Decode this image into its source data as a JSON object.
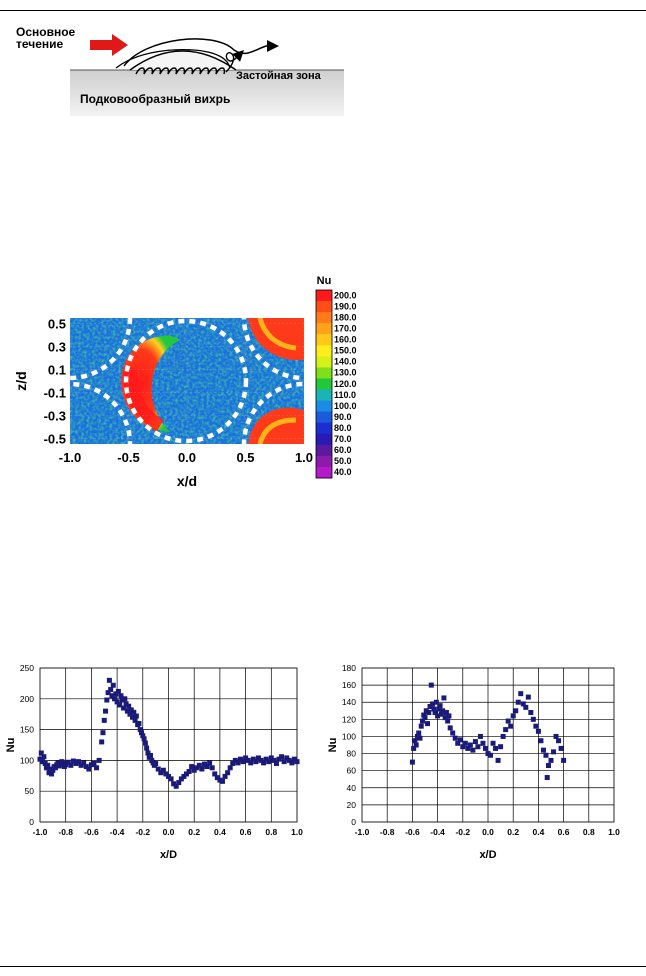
{
  "schematic": {
    "main_flow_label": "Основное\nтечение",
    "stagnation_label": "Застойная зона",
    "horseshoe_label": "Подковообразный вихрь"
  },
  "heatmap": {
    "colorbar_title": "Nu",
    "colorbar_levels": [
      "200.0",
      "190.0",
      "180.0",
      "170.0",
      "160.0",
      "150.0",
      "140.0",
      "130.0",
      "120.0",
      "110.0",
      "100.0",
      "90.0",
      "80.0",
      "70.0",
      "60.0",
      "50.0",
      "40.0"
    ],
    "colorbar_colors": [
      "#ff1a1a",
      "#ff4d1a",
      "#ff7a1a",
      "#ffa31a",
      "#ffc81a",
      "#ffee1a",
      "#d4f21a",
      "#7fe01a",
      "#22c83a",
      "#1ab4b4",
      "#1a8ce6",
      "#1a5adc",
      "#1a2ed2",
      "#2a1ab4",
      "#5a1aa0",
      "#8c1aaa",
      "#b41ac8"
    ],
    "y_ticks": [
      "0.5",
      "0.3",
      "0.1",
      "-0.1",
      "-0.3",
      "-0.5"
    ],
    "x_ticks": [
      "-1.0",
      "-0.5",
      "0.0",
      "0.5",
      "1.0"
    ],
    "xlabel": "x/d",
    "ylabel": "z/d"
  },
  "chart_data": [
    {
      "type": "scatter",
      "xlabel": "x/D",
      "ylabel": "Nu",
      "xlim": [
        -1.0,
        1.0
      ],
      "ylim": [
        0,
        250
      ],
      "x_ticks": [
        "-1.0",
        "-0.8",
        "-0.6",
        "-0.4",
        "-0.2",
        "0.0",
        "0.2",
        "0.4",
        "0.6",
        "0.8",
        "1.0"
      ],
      "y_ticks": [
        "0",
        "50",
        "100",
        "150",
        "200",
        "250"
      ],
      "grid": true,
      "marker_color": "#1a1a7a",
      "points": [
        [
          -1.0,
          102
        ],
        [
          -0.99,
          112
        ],
        [
          -0.98,
          98
        ],
        [
          -0.97,
          106
        ],
        [
          -0.96,
          95
        ],
        [
          -0.95,
          88
        ],
        [
          -0.94,
          92
        ],
        [
          -0.93,
          80
        ],
        [
          -0.92,
          86
        ],
        [
          -0.91,
          78
        ],
        [
          -0.9,
          84
        ],
        [
          -0.89,
          90
        ],
        [
          -0.88,
          88
        ],
        [
          -0.87,
          93
        ],
        [
          -0.86,
          96
        ],
        [
          -0.85,
          91
        ],
        [
          -0.84,
          94
        ],
        [
          -0.83,
          98
        ],
        [
          -0.82,
          95
        ],
        [
          -0.81,
          90
        ],
        [
          -0.8,
          93
        ],
        [
          -0.78,
          97
        ],
        [
          -0.76,
          92
        ],
        [
          -0.74,
          99
        ],
        [
          -0.72,
          95
        ],
        [
          -0.7,
          98
        ],
        [
          -0.68,
          92
        ],
        [
          -0.66,
          96
        ],
        [
          -0.64,
          90
        ],
        [
          -0.62,
          86
        ],
        [
          -0.6,
          93
        ],
        [
          -0.58,
          95
        ],
        [
          -0.56,
          88
        ],
        [
          -0.54,
          100
        ],
        [
          -0.52,
          130
        ],
        [
          -0.51,
          145
        ],
        [
          -0.5,
          165
        ],
        [
          -0.49,
          180
        ],
        [
          -0.48,
          198
        ],
        [
          -0.47,
          210
        ],
        [
          -0.46,
          230
        ],
        [
          -0.45,
          215
        ],
        [
          -0.44,
          205
        ],
        [
          -0.43,
          222
        ],
        [
          -0.42,
          200
        ],
        [
          -0.41,
          208
        ],
        [
          -0.4,
          195
        ],
        [
          -0.39,
          212
        ],
        [
          -0.38,
          190
        ],
        [
          -0.37,
          205
        ],
        [
          -0.36,
          198
        ],
        [
          -0.35,
          185
        ],
        [
          -0.34,
          200
        ],
        [
          -0.33,
          192
        ],
        [
          -0.32,
          180
        ],
        [
          -0.31,
          188
        ],
        [
          -0.3,
          175
        ],
        [
          -0.29,
          182
        ],
        [
          -0.28,
          170
        ],
        [
          -0.27,
          178
        ],
        [
          -0.26,
          165
        ],
        [
          -0.25,
          172
        ],
        [
          -0.24,
          158
        ],
        [
          -0.23,
          160
        ],
        [
          -0.22,
          150
        ],
        [
          -0.21,
          145
        ],
        [
          -0.2,
          140
        ],
        [
          -0.19,
          135
        ],
        [
          -0.18,
          128
        ],
        [
          -0.17,
          120
        ],
        [
          -0.16,
          112
        ],
        [
          -0.15,
          105
        ],
        [
          -0.14,
          108
        ],
        [
          -0.13,
          100
        ],
        [
          -0.12,
          96
        ],
        [
          -0.11,
          92
        ],
        [
          -0.1,
          95
        ],
        [
          -0.08,
          86
        ],
        [
          -0.06,
          80
        ],
        [
          -0.04,
          84
        ],
        [
          -0.02,
          78
        ],
        [
          0.0,
          74
        ],
        [
          0.02,
          70
        ],
        [
          0.04,
          62
        ],
        [
          0.06,
          58
        ],
        [
          0.08,
          64
        ],
        [
          0.1,
          70
        ],
        [
          0.12,
          74
        ],
        [
          0.14,
          78
        ],
        [
          0.16,
          82
        ],
        [
          0.18,
          90
        ],
        [
          0.2,
          84
        ],
        [
          0.22,
          88
        ],
        [
          0.24,
          92
        ],
        [
          0.26,
          86
        ],
        [
          0.28,
          94
        ],
        [
          0.3,
          90
        ],
        [
          0.32,
          96
        ],
        [
          0.34,
          88
        ],
        [
          0.36,
          78
        ],
        [
          0.38,
          72
        ],
        [
          0.4,
          68
        ],
        [
          0.42,
          66
        ],
        [
          0.44,
          74
        ],
        [
          0.46,
          80
        ],
        [
          0.48,
          88
        ],
        [
          0.5,
          95
        ],
        [
          0.52,
          100
        ],
        [
          0.54,
          96
        ],
        [
          0.56,
          102
        ],
        [
          0.58,
          98
        ],
        [
          0.6,
          104
        ],
        [
          0.62,
          100
        ],
        [
          0.64,
          96
        ],
        [
          0.66,
          102
        ],
        [
          0.68,
          98
        ],
        [
          0.7,
          104
        ],
        [
          0.72,
          100
        ],
        [
          0.74,
          96
        ],
        [
          0.76,
          102
        ],
        [
          0.78,
          98
        ],
        [
          0.8,
          104
        ],
        [
          0.82,
          100
        ],
        [
          0.84,
          95
        ],
        [
          0.86,
          102
        ],
        [
          0.88,
          106
        ],
        [
          0.9,
          98
        ],
        [
          0.92,
          104
        ],
        [
          0.94,
          100
        ],
        [
          0.96,
          96
        ],
        [
          0.98,
          102
        ],
        [
          1.0,
          98
        ]
      ]
    },
    {
      "type": "scatter",
      "xlabel": "x/D",
      "ylabel": "Nu",
      "xlim": [
        -1.0,
        1.0
      ],
      "ylim": [
        0,
        180
      ],
      "x_ticks": [
        "-1.0",
        "-0.8",
        "-0.6",
        "-0.4",
        "-0.2",
        "0.0",
        "0.2",
        "0.4",
        "0.6",
        "0.8",
        "1.0"
      ],
      "y_ticks": [
        "0",
        "20",
        "40",
        "60",
        "80",
        "100",
        "120",
        "140",
        "160",
        "180"
      ],
      "grid": true,
      "marker_color": "#1a1a7a",
      "points": [
        [
          -0.6,
          70
        ],
        [
          -0.59,
          86
        ],
        [
          -0.58,
          95
        ],
        [
          -0.57,
          90
        ],
        [
          -0.56,
          100
        ],
        [
          -0.55,
          104
        ],
        [
          -0.54,
          98
        ],
        [
          -0.53,
          112
        ],
        [
          -0.52,
          118
        ],
        [
          -0.51,
          125
        ],
        [
          -0.5,
          122
        ],
        [
          -0.49,
          130
        ],
        [
          -0.48,
          115
        ],
        [
          -0.47,
          128
        ],
        [
          -0.46,
          135
        ],
        [
          -0.45,
          160
        ],
        [
          -0.44,
          138
        ],
        [
          -0.43,
          132
        ],
        [
          -0.42,
          128
        ],
        [
          -0.41,
          140
        ],
        [
          -0.4,
          124
        ],
        [
          -0.39,
          132
        ],
        [
          -0.38,
          136
        ],
        [
          -0.37,
          126
        ],
        [
          -0.36,
          130
        ],
        [
          -0.35,
          145
        ],
        [
          -0.34,
          122
        ],
        [
          -0.33,
          128
        ],
        [
          -0.32,
          118
        ],
        [
          -0.31,
          124
        ],
        [
          -0.3,
          110
        ],
        [
          -0.28,
          104
        ],
        [
          -0.26,
          98
        ],
        [
          -0.24,
          92
        ],
        [
          -0.22,
          96
        ],
        [
          -0.2,
          88
        ],
        [
          -0.18,
          92
        ],
        [
          -0.16,
          86
        ],
        [
          -0.14,
          90
        ],
        [
          -0.12,
          84
        ],
        [
          -0.1,
          94
        ],
        [
          -0.08,
          88
        ],
        [
          -0.06,
          100
        ],
        [
          -0.04,
          92
        ],
        [
          -0.02,
          86
        ],
        [
          0.0,
          80
        ],
        [
          0.02,
          78
        ],
        [
          0.04,
          92
        ],
        [
          0.06,
          86
        ],
        [
          0.08,
          72
        ],
        [
          0.1,
          88
        ],
        [
          0.12,
          100
        ],
        [
          0.14,
          108
        ],
        [
          0.16,
          118
        ],
        [
          0.18,
          112
        ],
        [
          0.2,
          124
        ],
        [
          0.22,
          130
        ],
        [
          0.24,
          140
        ],
        [
          0.26,
          150
        ],
        [
          0.28,
          138
        ],
        [
          0.3,
          134
        ],
        [
          0.32,
          146
        ],
        [
          0.34,
          128
        ],
        [
          0.36,
          120
        ],
        [
          0.38,
          112
        ],
        [
          0.4,
          106
        ],
        [
          0.42,
          95
        ],
        [
          0.44,
          84
        ],
        [
          0.46,
          78
        ],
        [
          0.47,
          52
        ],
        [
          0.48,
          66
        ],
        [
          0.5,
          72
        ],
        [
          0.52,
          82
        ],
        [
          0.54,
          100
        ],
        [
          0.56,
          95
        ],
        [
          0.58,
          86
        ],
        [
          0.6,
          72
        ]
      ]
    }
  ]
}
